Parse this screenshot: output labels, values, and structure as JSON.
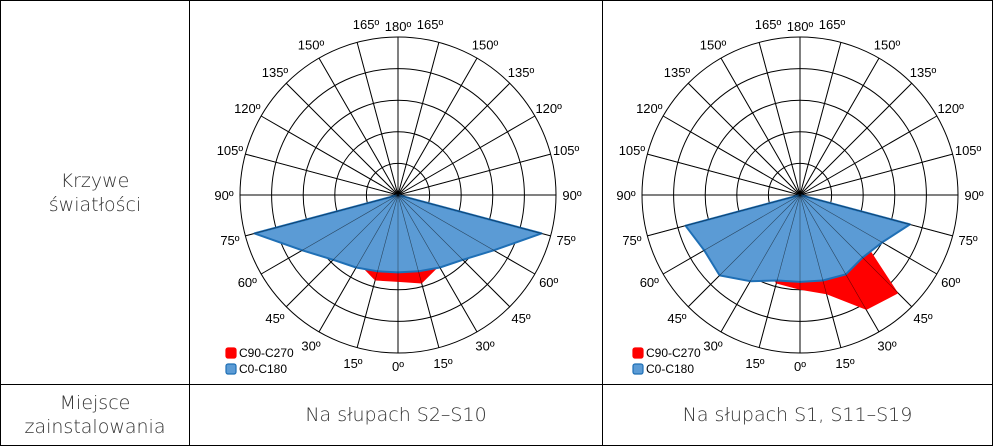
{
  "row_labels": {
    "curves": [
      "Krzywe",
      "światłości"
    ],
    "installation": [
      "Miejsce",
      "zainstalowania"
    ]
  },
  "installation_locations": [
    "Na słupach S2–S10",
    "Na słupach S1, S11–S19"
  ],
  "legend": [
    {
      "name": "C90-C270",
      "color": "#ff0000"
    },
    {
      "name": "C0-C180",
      "color": "#5b9bd5",
      "edge": "#1f6fb5"
    }
  ],
  "angle_labels": {
    "top": [
      "165º",
      "180º",
      "165º"
    ],
    "left": [
      "150º",
      "135º",
      "120º",
      "105º",
      "90º",
      "75º",
      "60º",
      "45º",
      "30º",
      "15º"
    ],
    "right": [
      "150º",
      "135º",
      "120º",
      "105º",
      "90º",
      "75º",
      "60º",
      "45º",
      "30º",
      "15º"
    ],
    "bottom": "0º"
  },
  "chart_data": [
    {
      "type": "polar-area",
      "title": "",
      "angles_deg": [
        0,
        15,
        30,
        45,
        60,
        75,
        90,
        105,
        120,
        135,
        150,
        165,
        180
      ],
      "radial_rings": 5,
      "series": [
        {
          "name": "C0-C180",
          "color": "#5b9bd5",
          "left": [
            0.49,
            0.5,
            0.53,
            0.58,
            0.7,
            0.94,
            0.0
          ],
          "right": [
            0.49,
            0.5,
            0.53,
            0.58,
            0.7,
            0.94,
            0.0
          ]
        },
        {
          "name": "C90-C270",
          "color": "#ff0000",
          "left": [
            0.55,
            0.56,
            0.5,
            0.42,
            0.3,
            0.1,
            0.0
          ],
          "right": [
            0.55,
            0.58,
            0.52,
            0.44,
            0.32,
            0.12,
            0.0
          ]
        }
      ]
    },
    {
      "type": "polar-area",
      "title": "",
      "angles_deg": [
        0,
        15,
        30,
        45,
        60,
        75,
        90,
        105,
        120,
        135,
        150,
        165,
        180
      ],
      "radial_rings": 5,
      "series": [
        {
          "name": "C0-C180",
          "color": "#5b9bd5",
          "left": [
            0.55,
            0.56,
            0.63,
            0.72,
            0.7,
            0.75,
            0.0
          ],
          "right": [
            0.55,
            0.56,
            0.58,
            0.56,
            0.6,
            0.72,
            0.0
          ]
        },
        {
          "name": "C90-C270",
          "color": "#ff0000",
          "left": [
            0.6,
            0.58,
            0.5,
            0.4,
            0.28,
            0.1,
            0.0
          ],
          "right": [
            0.6,
            0.65,
            0.84,
            0.88,
            0.4,
            0.12,
            0.0
          ]
        }
      ]
    }
  ]
}
